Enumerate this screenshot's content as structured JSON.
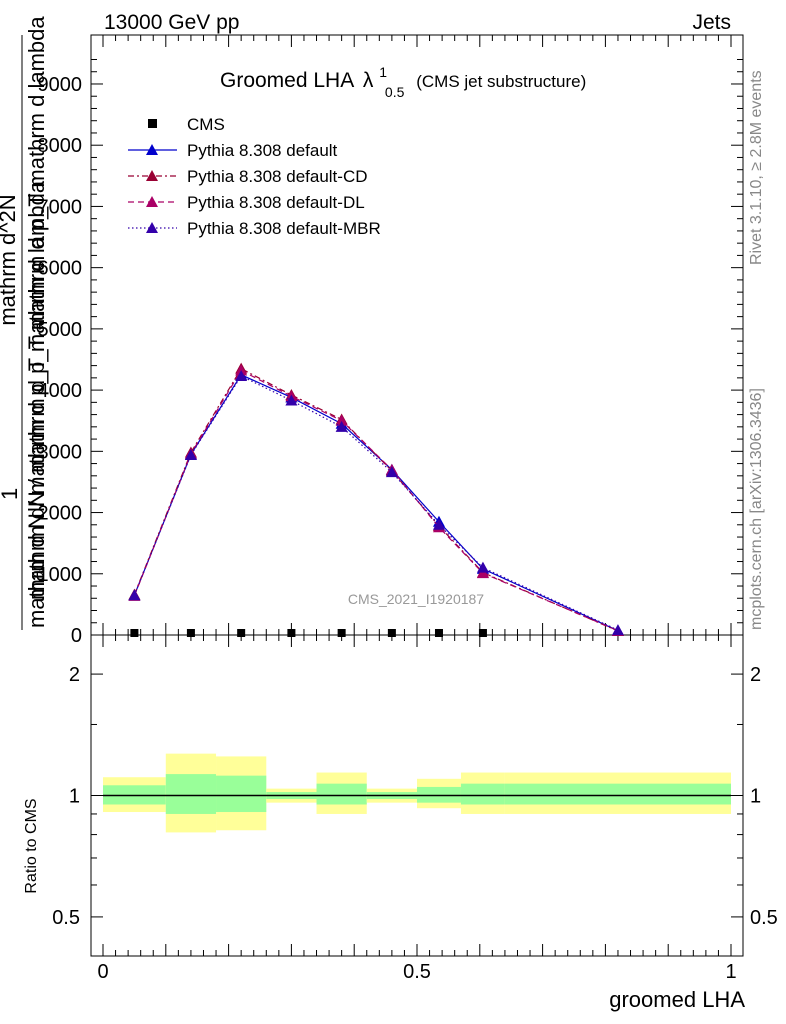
{
  "header": {
    "left": "13000 GeV pp",
    "right": "Jets"
  },
  "side_labels": {
    "rivet": "Rivet 3.1.10, ≥ 2.8M events",
    "mcplots": "mcplots.cern.ch [arXiv:1306.3436]"
  },
  "title": {
    "main": "Groomed LHA",
    "lambda": "λ",
    "sup": "1",
    "sub": "0.5",
    "suffix": "(CMS jet substructure)"
  },
  "watermark": "CMS_2021_I1920187",
  "ylabel": {
    "numerator_one": "1",
    "numerator_frac": "mathrm d^2N",
    "line1": "mathrm dN / mathrm d p_T mathrm d p_T mathrm d lambda",
    "line2": "mathrm d N / mathrm d p_T mathrm d lambda"
  },
  "xlabel": "groomed LHA",
  "ratio_ylabel": "Ratio to CMS",
  "main_ticks": [
    "0",
    "1000",
    "2000",
    "3000",
    "4000",
    "5000",
    "6000",
    "7000",
    "8000",
    "9000"
  ],
  "x_ticks": [
    "0",
    "0.5",
    "1"
  ],
  "ratio_ticks": [
    "0.5",
    "1",
    "2"
  ],
  "legend": [
    {
      "name": "CMS",
      "color": "#000000",
      "marker": "square",
      "dash": "none"
    },
    {
      "name": "Pythia 8.308 default",
      "color": "#0000cc",
      "marker": "triangle",
      "dash": "solid"
    },
    {
      "name": "Pythia 8.308 default-CD",
      "color": "#990033",
      "marker": "triangle",
      "dash": "dashdot"
    },
    {
      "name": "Pythia 8.308 default-DL",
      "color": "#aa0066",
      "marker": "triangle",
      "dash": "dashed"
    },
    {
      "name": "Pythia 8.308 default-MBR",
      "color": "#3300aa",
      "marker": "triangle",
      "dash": "dotted"
    }
  ],
  "chart_data": {
    "type": "line",
    "xlim": [
      0,
      1
    ],
    "ylim": [
      0,
      9800
    ],
    "ratio_ylim": [
      0.4,
      2.5
    ],
    "ratio_scale": "log",
    "grid": false,
    "legend_position": "top-left",
    "cms": {
      "x": [
        0.05,
        0.14,
        0.22,
        0.3,
        0.38,
        0.46,
        0.535,
        0.605
      ],
      "y": [
        0,
        0,
        0,
        0,
        0,
        0,
        0,
        0
      ]
    },
    "series": [
      {
        "name": "Pythia 8.308 default",
        "x": [
          0.05,
          0.14,
          0.22,
          0.3,
          0.38,
          0.46,
          0.535,
          0.605,
          0.82
        ],
        "y": [
          650,
          2950,
          4250,
          3880,
          3450,
          2700,
          1850,
          1080,
          70
        ]
      },
      {
        "name": "Pythia 8.308 default-CD",
        "x": [
          0.05,
          0.14,
          0.22,
          0.3,
          0.38,
          0.46,
          0.535,
          0.605,
          0.82
        ],
        "y": [
          660,
          2980,
          4350,
          3920,
          3520,
          2680,
          1780,
          1020,
          65
        ]
      },
      {
        "name": "Pythia 8.308 default-DL",
        "x": [
          0.05,
          0.14,
          0.22,
          0.3,
          0.38,
          0.46,
          0.535,
          0.605,
          0.82
        ],
        "y": [
          640,
          2960,
          4320,
          3900,
          3500,
          2700,
          1760,
          1010,
          70
        ]
      },
      {
        "name": "Pythia 8.308 default-MBR",
        "x": [
          0.05,
          0.14,
          0.22,
          0.3,
          0.38,
          0.46,
          0.535,
          0.605,
          0.82
        ],
        "y": [
          650,
          2940,
          4230,
          3830,
          3400,
          2660,
          1800,
          1100,
          80
        ]
      }
    ],
    "ratio_bands": [
      {
        "x0": 0.0,
        "x1": 0.1,
        "yellow": [
          0.91,
          1.11
        ],
        "green": [
          0.95,
          1.06
        ]
      },
      {
        "x0": 0.1,
        "x1": 0.18,
        "yellow": [
          0.81,
          1.27
        ],
        "green": [
          0.9,
          1.13
        ]
      },
      {
        "x0": 0.18,
        "x1": 0.26,
        "yellow": [
          0.82,
          1.25
        ],
        "green": [
          0.91,
          1.12
        ]
      },
      {
        "x0": 0.26,
        "x1": 0.34,
        "yellow": [
          0.96,
          1.04
        ],
        "green": [
          0.98,
          1.02
        ]
      },
      {
        "x0": 0.34,
        "x1": 0.42,
        "yellow": [
          0.9,
          1.14
        ],
        "green": [
          0.95,
          1.07
        ]
      },
      {
        "x0": 0.42,
        "x1": 0.5,
        "yellow": [
          0.96,
          1.04
        ],
        "green": [
          0.98,
          1.02
        ]
      },
      {
        "x0": 0.5,
        "x1": 0.57,
        "yellow": [
          0.93,
          1.1
        ],
        "green": [
          0.96,
          1.05
        ]
      },
      {
        "x0": 0.57,
        "x1": 0.64,
        "yellow": [
          0.9,
          1.14
        ],
        "green": [
          0.95,
          1.07
        ]
      },
      {
        "x0": 0.64,
        "x1": 1.0,
        "yellow": [
          0.9,
          1.14
        ],
        "green": [
          0.95,
          1.07
        ]
      }
    ]
  }
}
